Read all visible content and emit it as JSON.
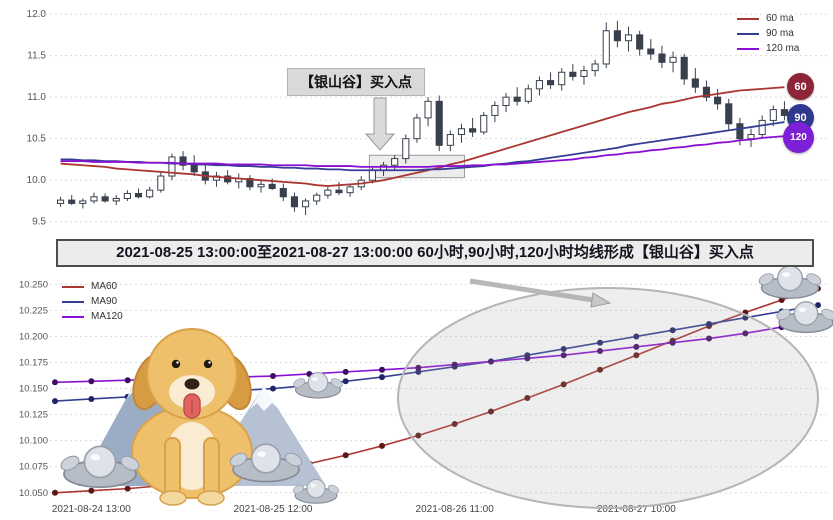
{
  "banner": {
    "text": "2021-08-25 13:00:00至2021-08-27 13:00:00 60小时,90小时,120小时均线形成【银山谷】买入点"
  },
  "decorations": [
    "golden-retriever-dog",
    "snow-mountains",
    "silver-ingots"
  ],
  "chart_data": [
    {
      "id": "hourly-candles-with-moving-averages",
      "type": "candlestick",
      "title": "",
      "xlabel": "",
      "ylabel": "",
      "ylim": [
        9.4,
        12.05
      ],
      "yticks": [
        9.5,
        10.0,
        10.5,
        11.0,
        11.5,
        12.0
      ],
      "grid": true,
      "legend_position": "upper right",
      "annotation": {
        "text": "【银山谷】买入点"
      },
      "highlight_region": {
        "x0": 28,
        "x1": 36,
        "price_top": 10.3,
        "price_bottom": 10.03
      },
      "end_badges": [
        {
          "label": "60",
          "color": "#8e2438"
        },
        {
          "label": "90",
          "color": "#2f3a8e"
        },
        {
          "label": "120",
          "color": "#7c1fd6"
        }
      ],
      "ohlc_columns": [
        "open",
        "high",
        "low",
        "close"
      ],
      "candles_ohlc": [
        [
          9.72,
          9.8,
          9.68,
          9.76
        ],
        [
          9.76,
          9.82,
          9.7,
          9.72
        ],
        [
          9.72,
          9.78,
          9.66,
          9.75
        ],
        [
          9.75,
          9.85,
          9.72,
          9.8
        ],
        [
          9.8,
          9.84,
          9.73,
          9.75
        ],
        [
          9.75,
          9.82,
          9.7,
          9.78
        ],
        [
          9.78,
          9.88,
          9.75,
          9.84
        ],
        [
          9.84,
          9.9,
          9.78,
          9.8
        ],
        [
          9.8,
          9.92,
          9.78,
          9.88
        ],
        [
          9.88,
          10.1,
          9.85,
          10.05
        ],
        [
          10.05,
          10.32,
          10.0,
          10.28
        ],
        [
          10.28,
          10.35,
          10.12,
          10.18
        ],
        [
          10.18,
          10.3,
          10.05,
          10.1
        ],
        [
          10.1,
          10.18,
          9.95,
          10.0
        ],
        [
          10.0,
          10.1,
          9.92,
          10.05
        ],
        [
          10.05,
          10.12,
          9.95,
          9.98
        ],
        [
          9.98,
          10.08,
          9.9,
          10.02
        ],
        [
          10.02,
          10.06,
          9.88,
          9.92
        ],
        [
          9.92,
          10.0,
          9.85,
          9.95
        ],
        [
          9.95,
          10.02,
          9.88,
          9.9
        ],
        [
          9.9,
          9.96,
          9.75,
          9.8
        ],
        [
          9.8,
          9.85,
          9.62,
          9.68
        ],
        [
          9.68,
          9.78,
          9.58,
          9.75
        ],
        [
          9.75,
          9.85,
          9.7,
          9.82
        ],
        [
          9.82,
          9.92,
          9.78,
          9.88
        ],
        [
          9.88,
          9.98,
          9.82,
          9.85
        ],
        [
          9.85,
          9.95,
          9.8,
          9.92
        ],
        [
          9.92,
          10.05,
          9.88,
          10.0
        ],
        [
          10.0,
          10.15,
          9.96,
          10.12
        ],
        [
          10.12,
          10.22,
          10.05,
          10.18
        ],
        [
          10.18,
          10.3,
          10.12,
          10.26
        ],
        [
          10.26,
          10.55,
          10.2,
          10.5
        ],
        [
          10.5,
          10.8,
          10.45,
          10.75
        ],
        [
          10.75,
          11.0,
          10.65,
          10.95
        ],
        [
          10.95,
          11.02,
          10.35,
          10.42
        ],
        [
          10.42,
          10.6,
          10.35,
          10.55
        ],
        [
          10.55,
          10.68,
          10.45,
          10.62
        ],
        [
          10.62,
          10.75,
          10.52,
          10.58
        ],
        [
          10.58,
          10.82,
          10.55,
          10.78
        ],
        [
          10.78,
          10.95,
          10.7,
          10.9
        ],
        [
          10.9,
          11.05,
          10.82,
          11.0
        ],
        [
          11.0,
          11.12,
          10.9,
          10.95
        ],
        [
          10.95,
          11.15,
          10.92,
          11.1
        ],
        [
          11.1,
          11.25,
          11.02,
          11.2
        ],
        [
          11.2,
          11.3,
          11.1,
          11.15
        ],
        [
          11.15,
          11.35,
          11.08,
          11.3
        ],
        [
          11.3,
          11.4,
          11.2,
          11.25
        ],
        [
          11.25,
          11.38,
          11.15,
          11.32
        ],
        [
          11.32,
          11.45,
          11.25,
          11.4
        ],
        [
          11.4,
          11.9,
          11.35,
          11.8
        ],
        [
          11.8,
          11.92,
          11.6,
          11.68
        ],
        [
          11.68,
          11.85,
          11.55,
          11.75
        ],
        [
          11.75,
          11.8,
          11.5,
          11.58
        ],
        [
          11.58,
          11.7,
          11.45,
          11.52
        ],
        [
          11.52,
          11.62,
          11.35,
          11.42
        ],
        [
          11.42,
          11.55,
          11.3,
          11.48
        ],
        [
          11.48,
          11.52,
          11.15,
          11.22
        ],
        [
          11.22,
          11.35,
          11.05,
          11.12
        ],
        [
          11.12,
          11.2,
          10.95,
          11.0
        ],
        [
          11.0,
          11.1,
          10.85,
          10.92
        ],
        [
          10.92,
          10.98,
          10.6,
          10.68
        ],
        [
          10.68,
          10.75,
          10.42,
          10.5
        ],
        [
          10.5,
          10.62,
          10.4,
          10.55
        ],
        [
          10.55,
          10.78,
          10.5,
          10.72
        ],
        [
          10.72,
          10.9,
          10.65,
          10.85
        ],
        [
          10.85,
          10.95,
          10.72,
          10.78
        ]
      ],
      "series": [
        {
          "name": "60 ma",
          "color": "#ab3530",
          "values": [
            10.2,
            10.19,
            10.18,
            10.17,
            10.16,
            10.14,
            10.13,
            10.12,
            10.11,
            10.1,
            10.09,
            10.08,
            10.07,
            10.05,
            10.04,
            10.03,
            10.02,
            10.01,
            10.0,
            9.99,
            9.98,
            9.97,
            9.96,
            9.94,
            9.93,
            9.94,
            9.95,
            9.96,
            9.98,
            10.0,
            10.03,
            10.06,
            10.09,
            10.12,
            10.15,
            10.19,
            10.22,
            10.26,
            10.3,
            10.34,
            10.38,
            10.42,
            10.46,
            10.5,
            10.54,
            10.58,
            10.62,
            10.66,
            10.7,
            10.74,
            10.78,
            10.82,
            10.85,
            10.88,
            10.92,
            10.94,
            10.97,
            11.0,
            11.02,
            11.04,
            11.06,
            11.08,
            11.09,
            11.1,
            11.11,
            11.12
          ]
        },
        {
          "name": "90 ma",
          "color": "#333f93",
          "values": [
            10.25,
            10.25,
            10.24,
            10.24,
            10.23,
            10.23,
            10.22,
            10.22,
            10.21,
            10.21,
            10.2,
            10.2,
            10.19,
            10.19,
            10.18,
            10.18,
            10.17,
            10.17,
            10.16,
            10.16,
            10.15,
            10.15,
            10.14,
            10.14,
            10.13,
            10.13,
            10.12,
            10.12,
            10.12,
            10.12,
            10.12,
            10.12,
            10.12,
            10.13,
            10.13,
            10.14,
            10.15,
            10.16,
            10.17,
            10.19,
            10.2,
            10.22,
            10.23,
            10.25,
            10.27,
            10.29,
            10.31,
            10.33,
            10.35,
            10.37,
            10.39,
            10.42,
            10.44,
            10.46,
            10.48,
            10.5,
            10.52,
            10.54,
            10.56,
            10.58,
            10.6,
            10.62,
            10.64,
            10.66,
            10.68,
            10.7
          ]
        },
        {
          "name": "120 ma",
          "color": "#8a0fd4",
          "values": [
            10.23,
            10.23,
            10.23,
            10.22,
            10.22,
            10.22,
            10.22,
            10.21,
            10.21,
            10.21,
            10.21,
            10.2,
            10.2,
            10.2,
            10.2,
            10.19,
            10.19,
            10.19,
            10.19,
            10.18,
            10.18,
            10.18,
            10.18,
            10.17,
            10.17,
            10.17,
            10.17,
            10.16,
            10.16,
            10.16,
            10.16,
            10.16,
            10.16,
            10.16,
            10.17,
            10.17,
            10.17,
            10.18,
            10.18,
            10.19,
            10.19,
            10.2,
            10.21,
            10.22,
            10.23,
            10.24,
            10.25,
            10.27,
            10.28,
            10.3,
            10.31,
            10.33,
            10.34,
            10.36,
            10.37,
            10.39,
            10.4,
            10.42,
            10.43,
            10.45,
            10.46,
            10.48,
            10.49,
            10.51,
            10.52,
            10.53
          ]
        }
      ]
    },
    {
      "id": "moving-average-detail",
      "type": "line",
      "title": "",
      "xlabel": "",
      "ylabel": "",
      "ylim": [
        10.045,
        10.258
      ],
      "yticks": [
        10.05,
        10.075,
        10.1,
        10.125,
        10.15,
        10.175,
        10.2,
        10.225,
        10.25
      ],
      "grid": true,
      "legend_position": "upper left",
      "highlight_ellipse": true,
      "x_ticks": [
        {
          "index": 1,
          "label": "2021-08-24 13:00"
        },
        {
          "index": 6,
          "label": "2021-08-25 12:00"
        },
        {
          "index": 11,
          "label": "2021-08-26 11:00"
        },
        {
          "index": 16,
          "label": "2021-08-27 10:00"
        }
      ],
      "series": [
        {
          "name": "MA60",
          "color": "#ab3530",
          "dot_color": "#5e1715",
          "values": [
            10.05,
            10.052,
            10.054,
            10.057,
            10.06,
            10.065,
            10.071,
            10.078,
            10.086,
            10.095,
            10.105,
            10.116,
            10.128,
            10.141,
            10.154,
            10.168,
            10.182,
            10.196,
            10.21,
            10.223,
            10.235,
            10.246
          ]
        },
        {
          "name": "MA90",
          "color": "#333f93",
          "dot_color": "#1d2566",
          "values": [
            10.138,
            10.14,
            10.142,
            10.144,
            10.146,
            10.148,
            10.15,
            10.153,
            10.157,
            10.161,
            10.166,
            10.171,
            10.176,
            10.182,
            10.188,
            10.194,
            10.2,
            10.206,
            10.212,
            10.218,
            10.224,
            10.23
          ]
        },
        {
          "name": "MA120",
          "color": "#8a0fd4",
          "dot_color": "#3f0a63",
          "values": [
            10.156,
            10.157,
            10.158,
            10.159,
            10.16,
            10.161,
            10.162,
            10.164,
            10.166,
            10.168,
            10.17,
            10.173,
            10.176,
            10.179,
            10.182,
            10.186,
            10.19,
            10.194,
            10.198,
            10.203,
            10.209,
            10.216
          ]
        }
      ]
    }
  ]
}
